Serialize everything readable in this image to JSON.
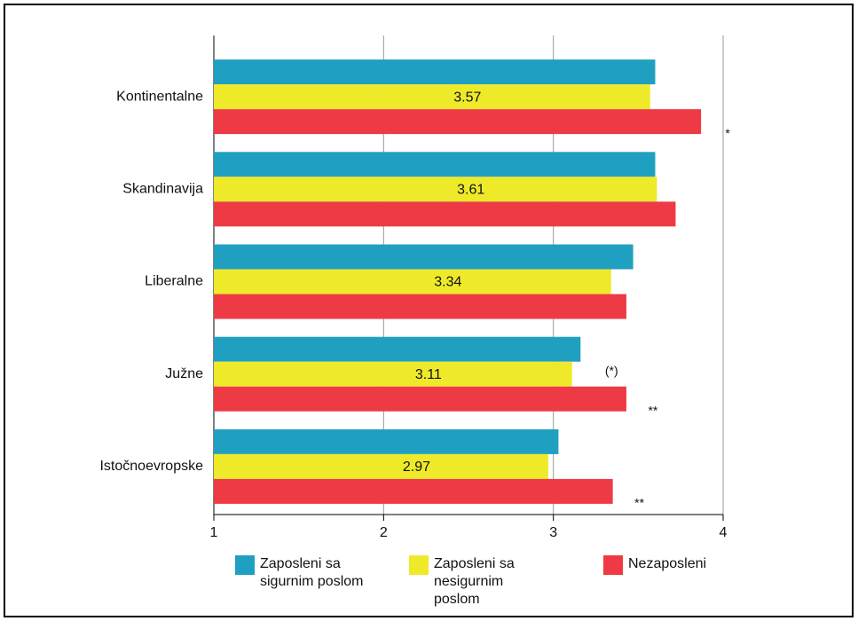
{
  "chart_data": {
    "type": "hbar",
    "categories": [
      "Kontinentalne",
      "Skandinavija",
      "Liberalne",
      "Južne",
      "Istočnoevropske"
    ],
    "series": [
      {
        "name": "Zaposleni sa sigurnim poslom",
        "color": "#1fa0c0",
        "values": [
          3.6,
          3.6,
          3.47,
          3.16,
          3.03
        ],
        "notes": [
          null,
          null,
          null,
          "(*)",
          null
        ]
      },
      {
        "name": "Zaposleni sa nesigurnim poslom",
        "color": "#eeea2a",
        "values": [
          3.57,
          3.61,
          3.34,
          3.11,
          2.97
        ],
        "show_value_labels": true
      },
      {
        "name": "Nezaposleni",
        "color": "#ee3a44",
        "values": [
          3.87,
          3.72,
          3.43,
          3.43,
          3.35
        ],
        "notes": [
          "*",
          null,
          null,
          "**",
          "**"
        ]
      }
    ],
    "xlim": [
      1,
      4
    ],
    "xticks": [
      1,
      2,
      3,
      4
    ],
    "grid": true,
    "legend": "bottom"
  }
}
